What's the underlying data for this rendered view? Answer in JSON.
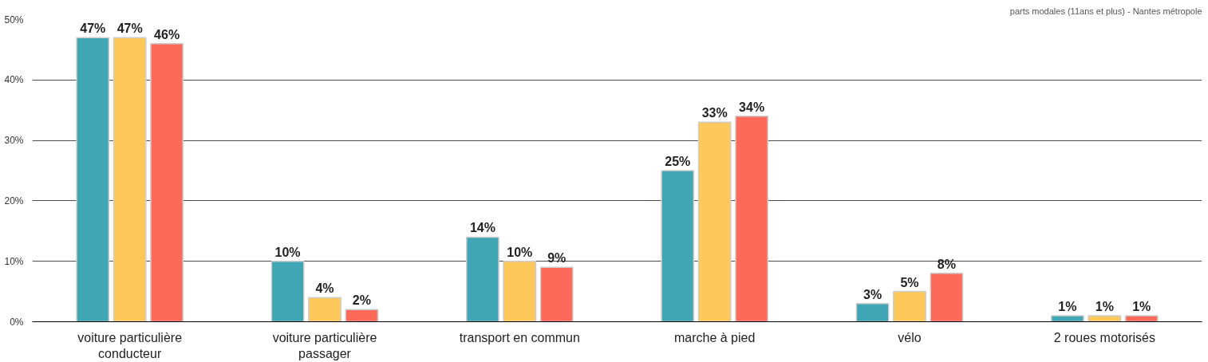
{
  "chart_data": {
    "type": "bar",
    "categories": [
      "voiture particulière\nconducteur",
      "voiture particulière\npassager",
      "transport en commun",
      "marche à pied",
      "vélo",
      "2 roues motorisés"
    ],
    "series": [
      {
        "color": "#41a6b4",
        "values": [
          47,
          10,
          14,
          25,
          3,
          1
        ],
        "value_labels": [
          "47%",
          "10%",
          "14%",
          "25%",
          "3%",
          "1%"
        ]
      },
      {
        "color": "#fec85a",
        "values": [
          47,
          4,
          10,
          33,
          5,
          1
        ],
        "value_labels": [
          "47%",
          "4%",
          "10%",
          "33%",
          "5%",
          "1%"
        ]
      },
      {
        "color": "#fd6a5a",
        "values": [
          46,
          2,
          9,
          34,
          8,
          1
        ],
        "value_labels": [
          "46%",
          "2%",
          "9%",
          "34%",
          "8%",
          "1%"
        ]
      }
    ],
    "ylim": [
      0,
      50
    ],
    "yticks": [
      {
        "value": 0,
        "label": "0%"
      },
      {
        "value": 10,
        "label": "10%"
      },
      {
        "value": 20,
        "label": "20%"
      },
      {
        "value": 30,
        "label": "30%"
      },
      {
        "value": 40,
        "label": "40%"
      },
      {
        "value": 50,
        "label": "50%"
      }
    ],
    "grid": "y",
    "annotations": [
      "parts modales (11ans et plus) - Nantes métropole"
    ]
  }
}
